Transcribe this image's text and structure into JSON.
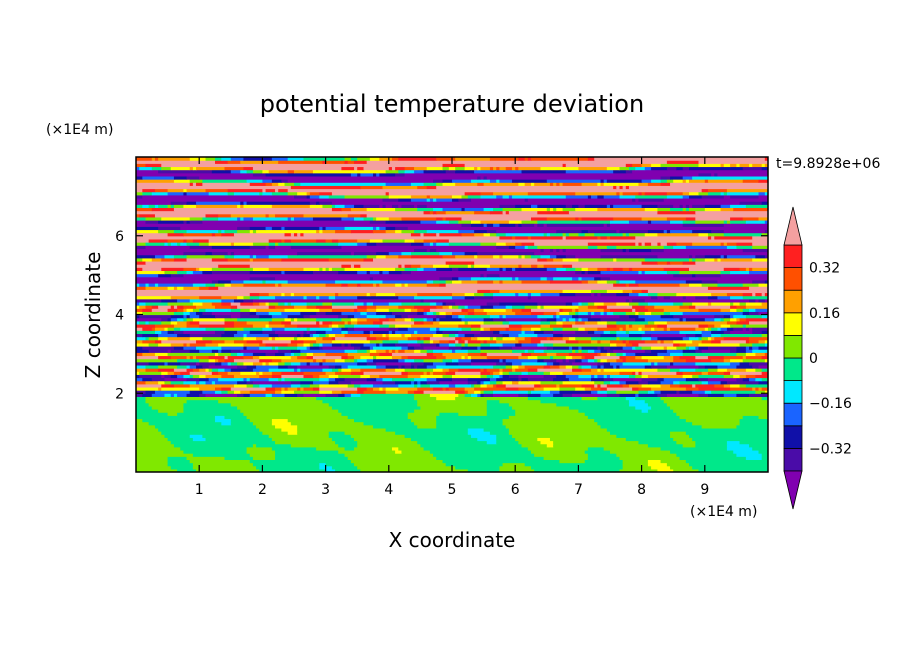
{
  "chart_data": {
    "type": "heatmap",
    "title": "potential temperature deviation",
    "xlabel": "X coordinate",
    "ylabel": "Z coordinate",
    "x_unit": "(×1E4 m)",
    "y_unit": "(×1E4 m)",
    "time_label": "t=9.8928e+06",
    "xlim": [
      0,
      10
    ],
    "ylim": [
      0,
      8
    ],
    "x_ticks": [
      1,
      2,
      3,
      4,
      5,
      6,
      7,
      8,
      9
    ],
    "y_ticks": [
      2,
      4,
      6
    ],
    "x_tick_labels": [
      "1",
      "2",
      "3",
      "4",
      "5",
      "6",
      "7",
      "8",
      "9"
    ],
    "y_tick_labels": [
      "2",
      "4",
      "6"
    ],
    "colorbar": {
      "levels": [
        -0.4,
        -0.32,
        -0.24,
        -0.16,
        -0.08,
        0,
        0.08,
        0.16,
        0.24,
        0.32,
        0.4
      ],
      "colors": [
        "#8000b0",
        "#4a0ca8",
        "#1010a8",
        "#1a64ff",
        "#00e8ff",
        "#00e88a",
        "#80e800",
        "#ffff00",
        "#ffa000",
        "#ff5000",
        "#ff2020",
        "#f4a0a0"
      ],
      "tick_values": [
        0.32,
        0.16,
        0,
        -0.16,
        -0.32
      ],
      "tick_labels": [
        "0.32",
        "0.16",
        "0",
        "−0.16",
        "−0.32"
      ],
      "extend": "both"
    },
    "regions": [
      {
        "z_range": [
          0,
          1.9
        ],
        "dominant_values": [
          -0.04,
          0.04
        ],
        "description": "green/teal mixed lower layer"
      },
      {
        "z_range": [
          1.9,
          4.2
        ],
        "dominant_values": [
          -0.4,
          0.4
        ],
        "description": "multi-colored banded turbulent layer"
      },
      {
        "z_range": [
          4.2,
          8
        ],
        "dominant_values": [
          -0.45,
          0.45
        ],
        "description": "alternating pink and purple horizontal bands"
      }
    ]
  }
}
